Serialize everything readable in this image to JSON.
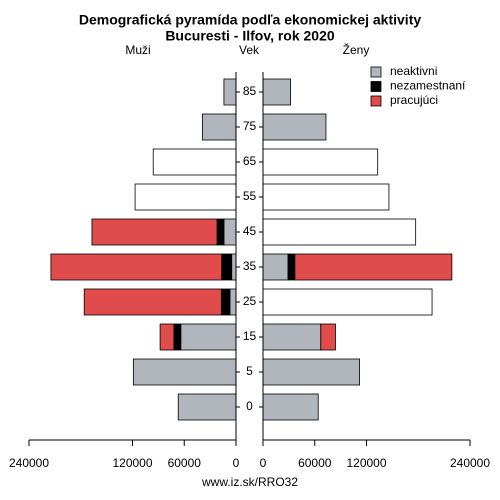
{
  "chart_data": {
    "type": "pyramid",
    "title": "Demografická pyramída podľa ekonomickej aktivity",
    "subtitle": "Bucuresti - Ilfov, rok 2020",
    "left_label": "Muži",
    "center_label": "Vek",
    "right_label": "Ženy",
    "categories": [
      "0",
      "5",
      "15",
      "25",
      "35",
      "45",
      "55",
      "65",
      "75",
      "85"
    ],
    "series": [
      {
        "name": "neaktivni",
        "color": "#b1b6bd",
        "men": [
          67000,
          119000,
          64000,
          7000,
          5000,
          14000,
          null,
          null,
          39000,
          14000
        ],
        "women": [
          64000,
          112000,
          67000,
          null,
          29000,
          null,
          null,
          null,
          73000,
          32000
        ]
      },
      {
        "name": "nezamestnaní",
        "color": "#000000",
        "men": [
          null,
          null,
          8000,
          10000,
          11600,
          8000,
          null,
          null,
          null,
          null
        ],
        "women": [
          null,
          null,
          null,
          null,
          8000,
          null,
          null,
          null,
          null,
          null
        ]
      },
      {
        "name": "pracujúci",
        "color": "#e04b4b",
        "men": [
          null,
          null,
          16000,
          159000,
          198000,
          145000,
          null,
          null,
          null,
          null
        ],
        "women": [
          null,
          null,
          17000,
          null,
          182000,
          null,
          null,
          null,
          null,
          null
        ]
      },
      {
        "color": "#ffffff",
        "men": [
          null,
          null,
          null,
          null,
          null,
          null,
          117000,
          96000,
          null,
          null
        ],
        "women": [
          null,
          null,
          null,
          196000,
          null,
          177000,
          146000,
          133000,
          null,
          null
        ]
      }
    ],
    "xlim": [
      0,
      240000
    ],
    "xticks": [
      0,
      60000,
      120000,
      240000
    ],
    "footer": "www.iz.sk/RRO32"
  }
}
